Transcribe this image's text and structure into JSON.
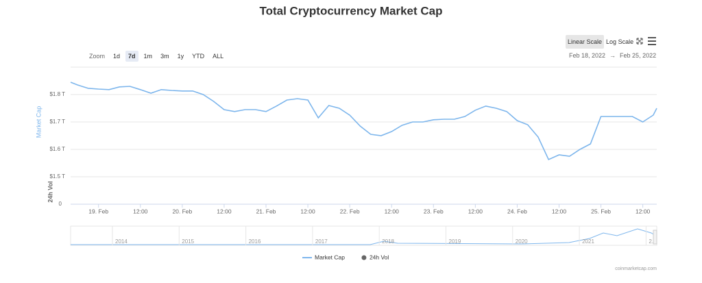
{
  "chart_data": {
    "type": "line",
    "title": "Total Cryptocurrency Market Cap",
    "ylabel": "Market Cap",
    "y2label": "24h Vol",
    "log_scale": false,
    "grid": true,
    "x": [
      "2022-02-18T16:00",
      "2022-02-18T18:00",
      "2022-02-18T21:00",
      "2022-02-19T00:00",
      "2022-02-19T03:00",
      "2022-02-19T06:00",
      "2022-02-19T09:00",
      "2022-02-19T12:00",
      "2022-02-19T15:00",
      "2022-02-19T18:00",
      "2022-02-19T21:00",
      "2022-02-20T00:00",
      "2022-02-20T03:00",
      "2022-02-20T06:00",
      "2022-02-20T09:00",
      "2022-02-20T12:00",
      "2022-02-20T15:00",
      "2022-02-20T18:00",
      "2022-02-20T21:00",
      "2022-02-21T00:00",
      "2022-02-21T03:00",
      "2022-02-21T06:00",
      "2022-02-21T09:00",
      "2022-02-21T12:00",
      "2022-02-21T15:00",
      "2022-02-21T18:00",
      "2022-02-21T21:00",
      "2022-02-22T00:00",
      "2022-02-22T03:00",
      "2022-02-22T06:00",
      "2022-02-22T09:00",
      "2022-02-22T12:00",
      "2022-02-22T15:00",
      "2022-02-22T18:00",
      "2022-02-22T21:00",
      "2022-02-23T00:00",
      "2022-02-23T03:00",
      "2022-02-23T06:00",
      "2022-02-23T09:00",
      "2022-02-23T12:00",
      "2022-02-23T15:00",
      "2022-02-23T18:00",
      "2022-02-23T21:00",
      "2022-02-24T00:00",
      "2022-02-24T03:00",
      "2022-02-24T06:00",
      "2022-02-24T09:00",
      "2022-02-24T12:00",
      "2022-02-24T15:00",
      "2022-02-24T18:00",
      "2022-02-24T21:00",
      "2022-02-25T00:00",
      "2022-02-25T03:00",
      "2022-02-25T06:00",
      "2022-02-25T09:00",
      "2022-02-25T12:00",
      "2022-02-25T15:00",
      "2022-02-25T16:00"
    ],
    "series": [
      {
        "name": "Market Cap",
        "color": "#7cb5ec",
        "values": [
          1.845,
          1.835,
          1.823,
          1.82,
          1.818,
          1.828,
          1.83,
          1.818,
          1.805,
          1.818,
          1.815,
          1.813,
          1.813,
          1.8,
          1.775,
          1.745,
          1.738,
          1.745,
          1.745,
          1.738,
          1.758,
          1.78,
          1.785,
          1.78,
          1.715,
          1.76,
          1.75,
          1.725,
          1.685,
          1.655,
          1.65,
          1.665,
          1.688,
          1.7,
          1.7,
          1.708,
          1.71,
          1.71,
          1.72,
          1.743,
          1.758,
          1.75,
          1.738,
          1.705,
          1.69,
          1.645,
          1.563,
          1.58,
          1.575,
          1.6,
          1.62,
          1.72,
          1.72,
          1.72,
          1.72,
          1.7,
          1.725,
          1.75
        ]
      },
      {
        "name": "24h Vol",
        "color": "#666666",
        "axis": "y2"
      }
    ],
    "xlim": [
      "2022-02-18T16:00",
      "2022-02-25T16:00"
    ],
    "xticks": [
      {
        "value": "2022-02-19T00:00",
        "label": "19. Feb"
      },
      {
        "value": "2022-02-19T12:00",
        "label": "12:00"
      },
      {
        "value": "2022-02-20T00:00",
        "label": "20. Feb"
      },
      {
        "value": "2022-02-20T12:00",
        "label": "12:00"
      },
      {
        "value": "2022-02-21T00:00",
        "label": "21. Feb"
      },
      {
        "value": "2022-02-21T12:00",
        "label": "12:00"
      },
      {
        "value": "2022-02-22T00:00",
        "label": "22. Feb"
      },
      {
        "value": "2022-02-22T12:00",
        "label": "12:00"
      },
      {
        "value": "2022-02-23T00:00",
        "label": "23. Feb"
      },
      {
        "value": "2022-02-23T12:00",
        "label": "12:00"
      },
      {
        "value": "2022-02-24T00:00",
        "label": "24. Feb"
      },
      {
        "value": "2022-02-24T12:00",
        "label": "12:00"
      },
      {
        "value": "2022-02-25T00:00",
        "label": "25. Feb"
      },
      {
        "value": "2022-02-25T12:00",
        "label": "12:00"
      }
    ],
    "ylim": [
      1.5,
      1.9
    ],
    "yticks": [
      {
        "value": 1.5,
        "label": "$1.5 T"
      },
      {
        "value": 1.6,
        "label": "$1.6 T"
      },
      {
        "value": 1.7,
        "label": "$1.7 T"
      },
      {
        "value": 1.8,
        "label": "$1.8 T"
      }
    ],
    "y2ticks": [
      0
    ],
    "legend": "bottom",
    "navigator_labels": [
      "2014",
      "2015",
      "2016",
      "2017",
      "2018",
      "2019",
      "2020",
      "2021",
      "2."
    ],
    "source": "coinmarketcap.com"
  },
  "toolbar": {
    "zoom_label": "Zoom",
    "zoom_buttons": [
      "1d",
      "7d",
      "1m",
      "3m",
      "1y",
      "YTD",
      "ALL"
    ],
    "zoom_selected": "7d",
    "scale_buttons": [
      "Linear Scale",
      "Log Scale"
    ],
    "scale_selected": "Linear Scale",
    "range_from": "Feb 18, 2022",
    "range_arrow": "→",
    "range_to": "Feb 25, 2022"
  }
}
